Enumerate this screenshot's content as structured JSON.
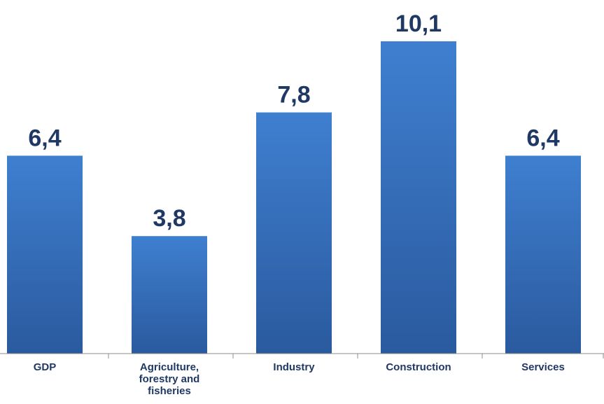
{
  "chart_data": {
    "type": "bar",
    "categories": [
      [
        "GDP"
      ],
      [
        "Agriculture,",
        "forestry and",
        "fisheries"
      ],
      [
        "Industry"
      ],
      [
        "Construction"
      ],
      [
        "Services"
      ]
    ],
    "values": [
      6.4,
      3.8,
      7.8,
      10.1,
      6.4
    ],
    "value_labels": [
      "6,4",
      "3,8",
      "7,8",
      "10,1",
      "6,4"
    ],
    "ylim": [
      0,
      10.1
    ],
    "grid": false,
    "legend": "none",
    "bar_color_top": "#3f7fd0",
    "bar_color_bottom": "#2a5a9e",
    "label_color": "#1f3864",
    "axis_color": "#8c8c8c"
  }
}
